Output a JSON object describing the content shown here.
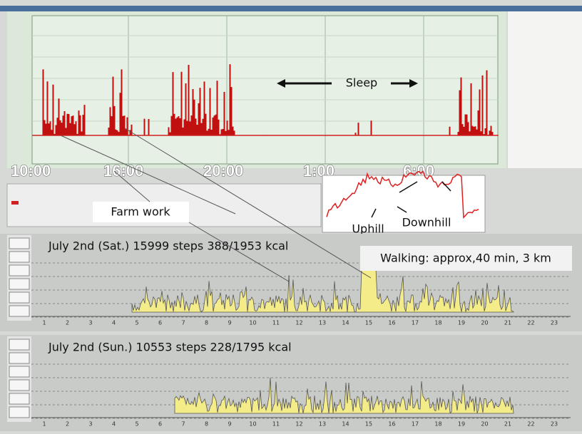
{
  "time_labels": [
    "10:00",
    "16:00",
    "20:00",
    "1:00",
    "6:00"
  ],
  "annotations": {
    "sleep": "Sleep",
    "farm_work": "Farm work",
    "uphill": "Uphill",
    "downhill": "Downhill",
    "walking": "Walking: approx,40 min, 3 km"
  },
  "days": [
    {
      "title": "July 2nd (Sat.) 15999 steps 388/1953 kcal"
    },
    {
      "title": "July 2nd (Sun.) 10553 steps 228/1795 kcal"
    }
  ],
  "hour_labels": [
    1,
    2,
    3,
    4,
    5,
    6,
    7,
    8,
    9,
    10,
    11,
    12,
    13,
    14,
    15,
    16,
    17,
    18,
    19,
    20,
    21,
    22,
    23
  ]
}
